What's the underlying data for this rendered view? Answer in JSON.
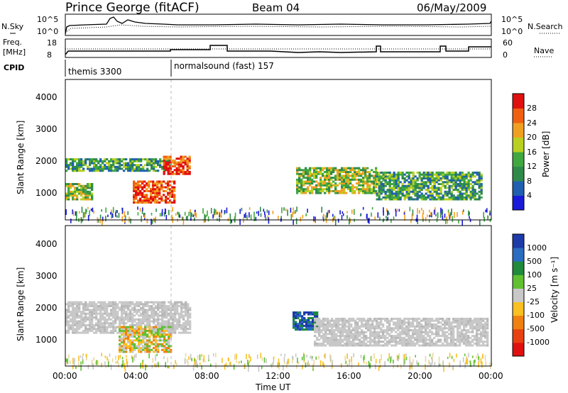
{
  "header": {
    "station": "Prince George (fitACF)",
    "beam": "Beam 04",
    "date": "06/May/2009"
  },
  "top_panels": {
    "nsky_label": "N.Sky",
    "nsky_ticks": [
      "10^5",
      "10^0"
    ],
    "nsearch_label": "N.Search",
    "nsearch_ticks": [
      "10^5",
      "10^0"
    ],
    "freq_label_1": "Freq.",
    "freq_label_2": "[MHz]",
    "freq_ticks": [
      "18",
      "8"
    ],
    "nave_label": "Nave",
    "nave_ticks": [
      "60",
      "0"
    ],
    "cpid_label": "CPID",
    "cpid_entries": [
      {
        "text": "themis 3300",
        "start_hour": 0
      },
      {
        "text": "normalsound (fast) 157",
        "start_hour": 6
      }
    ]
  },
  "axes": {
    "x_ticks": [
      "00:00",
      "04:00",
      "08:00",
      "12:00",
      "16:00",
      "20:00",
      "00:00"
    ],
    "x_label": "Time UT",
    "y_label": "Slant Range [km]",
    "y_ticks": [
      "1000",
      "2000",
      "3000",
      "4000"
    ]
  },
  "colorbars": {
    "power": {
      "label": "Power [dB]",
      "ticks": [
        "4",
        "8",
        "12",
        "16",
        "20",
        "24",
        "28"
      ],
      "colors": [
        "#1a1ad8",
        "#2060b0",
        "#2f8a4a",
        "#40a840",
        "#b8d020",
        "#f0a020",
        "#f06010",
        "#e01010"
      ]
    },
    "velocity": {
      "label": "Velocity [m s⁻¹]",
      "ticks": [
        "1000",
        "500",
        "100",
        "25",
        "-25",
        "-100",
        "-500",
        "-1000"
      ],
      "colors": [
        "#1c3aa8",
        "#2a6cc0",
        "#1e8a3a",
        "#60c030",
        "#c8c8c8",
        "#f8c020",
        "#f08010",
        "#e84010",
        "#e01010"
      ]
    }
  },
  "chart_data": {
    "type": "heatmap",
    "x_range_hours": [
      0,
      24
    ],
    "y_range_km": [
      180,
      4600
    ],
    "power_regions": [
      {
        "t0": 0.0,
        "t1": 6.0,
        "r0": 1700,
        "r1": 2100,
        "level": "mid"
      },
      {
        "t0": 0.0,
        "t1": 1.5,
        "r0": 800,
        "r1": 1300,
        "level": "high"
      },
      {
        "t0": 3.8,
        "t1": 6.2,
        "r0": 700,
        "r1": 1400,
        "level": "peak"
      },
      {
        "t0": 5.5,
        "t1": 7.0,
        "r0": 1600,
        "r1": 2200,
        "level": "peak"
      },
      {
        "t0": 13.0,
        "t1": 17.5,
        "r0": 1000,
        "r1": 1800,
        "level": "high"
      },
      {
        "t0": 17.5,
        "t1": 23.5,
        "r0": 800,
        "r1": 1700,
        "level": "mid"
      }
    ],
    "velocity_regions": [
      {
        "t0": 0.0,
        "t1": 7.0,
        "r0": 1200,
        "r1": 2200,
        "level": "grey"
      },
      {
        "t0": 3.0,
        "t1": 6.0,
        "r0": 600,
        "r1": 1400,
        "level": "orange"
      },
      {
        "t0": 12.8,
        "t1": 14.2,
        "r0": 1300,
        "r1": 1900,
        "level": "blue"
      },
      {
        "t0": 14.0,
        "t1": 23.8,
        "r0": 800,
        "r1": 1700,
        "level": "grey"
      }
    ]
  }
}
